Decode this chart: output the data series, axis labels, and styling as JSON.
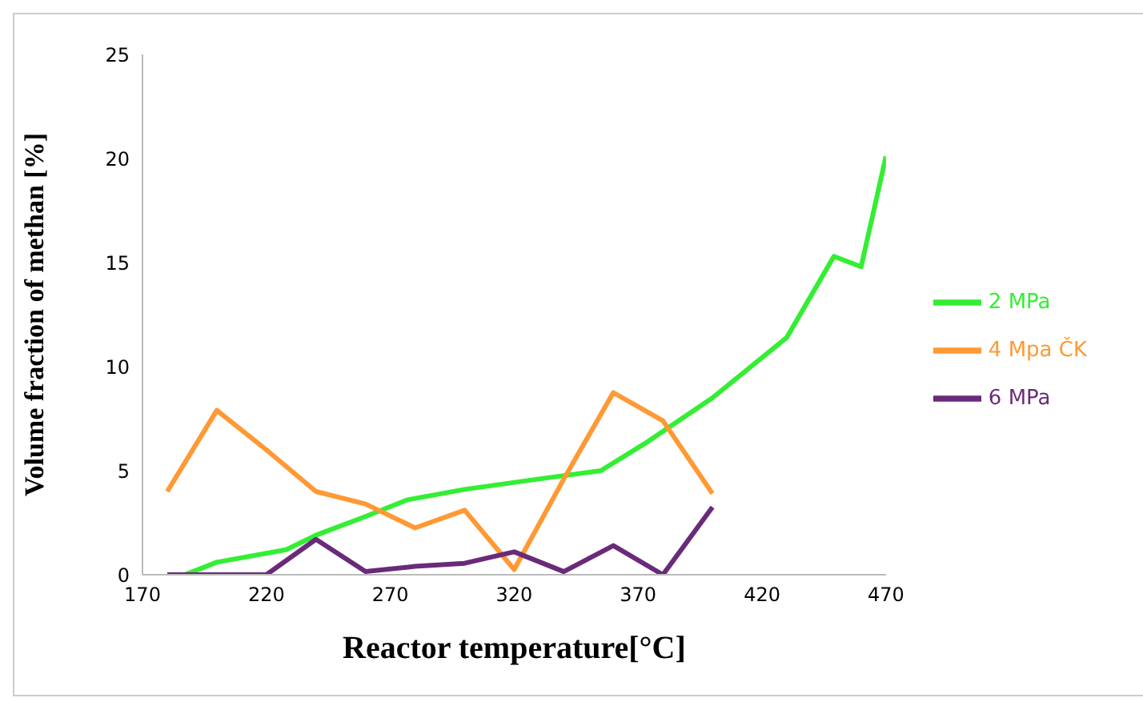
{
  "chart_data": {
    "type": "line",
    "xlabel": "Reactor temperature[°C]",
    "ylabel": "Volume fraction of methan [%]",
    "xlim": [
      170,
      470
    ],
    "xticks": [
      170,
      220,
      270,
      320,
      370,
      420,
      470
    ],
    "ylim": [
      0,
      25
    ],
    "yticks": [
      0,
      5,
      10,
      15,
      20,
      25
    ],
    "grid": false,
    "legend": "right",
    "marker": "none",
    "series": [
      {
        "name": "2 MPa",
        "color": "#33ee33",
        "x": [
          187,
          200,
          228,
          240,
          260,
          277,
          300,
          330,
          355,
          374,
          400,
          430,
          449,
          460,
          470
        ],
        "values": [
          0,
          0.6,
          1.2,
          1.9,
          2.8,
          3.6,
          4.1,
          4.6,
          5.0,
          6.4,
          8.5,
          11.4,
          15.3,
          14.8,
          20.1
        ]
      },
      {
        "name": "4 Mpa ČK",
        "color": "#ff9933",
        "x": [
          180,
          200,
          220,
          240,
          260,
          280,
          300,
          320,
          340,
          360,
          380,
          400
        ],
        "values": [
          4.0,
          7.9,
          6.0,
          4.0,
          3.4,
          2.25,
          3.1,
          0.25,
          4.6,
          8.75,
          7.4,
          3.9
        ]
      },
      {
        "name": "6 MPa",
        "color": "#6a2a7a",
        "x": [
          180,
          200,
          220,
          240,
          260,
          280,
          300,
          320,
          340,
          360,
          380,
          400
        ],
        "values": [
          0,
          0,
          0,
          1.7,
          0.15,
          0.4,
          0.55,
          1.1,
          0.15,
          1.4,
          0,
          3.25
        ]
      }
    ]
  }
}
